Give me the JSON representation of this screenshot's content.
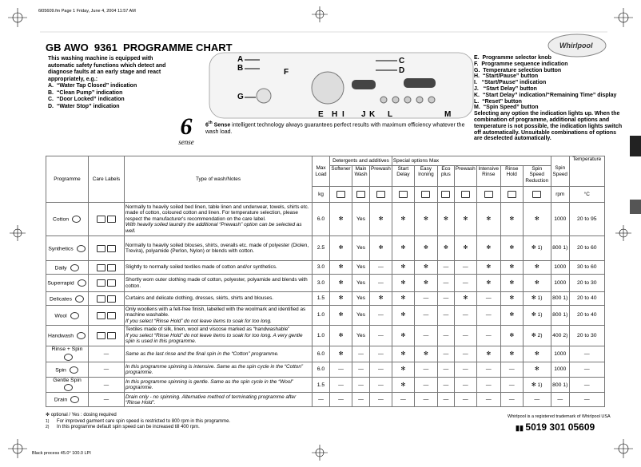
{
  "header": {
    "file_line": "6l05609.fm  Page 1  Friday, June 4, 2004  11:57 AM",
    "title": "GB AWO  9361  PROGRAMME CHART",
    "brand": "Whirlpool"
  },
  "intro": {
    "text": "This washing machine is equipped with automatic safety functions which detect and diagnose faults at an early stage and react appropriately, e.g.:",
    "items": [
      "A.  “Water Tap Closed” indication",
      "B.  “Clean Pump” indication",
      "C.  “Door Locked” indication",
      "D.  “Water Stop” indication"
    ]
  },
  "panel_labels": [
    "A",
    "B",
    "C",
    "D",
    "E",
    "F",
    "G",
    "H",
    "I",
    "J",
    "K",
    "L",
    "M"
  ],
  "legend": {
    "items": [
      "E.  Programme selector knob",
      "F.  Programme sequence indication",
      "G.  Temperature selection button",
      "H.  “Start/Pause” button",
      "I.   “Start/Pause” indication",
      "J.   “Start Delay” button",
      "K.  “Start Delay” indication/“Remaining Time” display",
      "L.  “Reset” button",
      "M.  “Spin Speed” button"
    ],
    "note": "Selecting any option the indication lights up. When the combination of programme, additional options and temperature is not possible, the indication lights switch off automatically. Unsuitable combinations of options are deselected automatically."
  },
  "sixth_sense": {
    "logo_number": "6",
    "logo_word": "sense",
    "lead": "6",
    "lead_sup": "th",
    "lead_word": " Sense",
    "text": " intelligent technology always guarantees perfect results with maximum efficiency whatever the wash load."
  },
  "table": {
    "headers": {
      "programme": "Programme",
      "care": "Care Labels",
      "type": "Type of wash/Notes",
      "max_load": "Max Load",
      "detergents": "Detergents and additives",
      "special": "Special options Max",
      "spin": "Spin Speed",
      "temperature": "Temperature",
      "columns": [
        "Softener",
        "Main Wash",
        "Prewash",
        "Start Delay",
        "Easy Ironing",
        "Eco plus",
        "Prewash",
        "Intensive Rinse",
        "Rinse Hold",
        "Spin Speed Reduction"
      ],
      "unit_load": "kg",
      "unit_spin": "rpm",
      "unit_temp": "°C"
    },
    "rows": [
      {
        "programme": "Cotton",
        "notes": {
          "text": "Normally to heavily soiled bed linen, table linen and underwear, towels, shirts etc. made of cotton, coloured cotton and linen. For temperature selection, please respect the manufacturer's recommendation on the care label.",
          "italic": "With heavily soiled laundry the additional “Prewash” option can be selected as well."
        },
        "cells": [
          "6.0",
          "✻",
          "Yes",
          "✻",
          "✻",
          "✻",
          "✻",
          "✻",
          "✻",
          "✻",
          "✻",
          "1000",
          "20 to 95"
        ]
      },
      {
        "programme": "Synthetics",
        "notes": {
          "text": "Normally to heavily soiled blouses, shirts, overalls etc. made of polyester (Diolen, Trevira), polyamide (Perlon, Nylon) or blends with cotton."
        },
        "cells": [
          "2.5",
          "✻",
          "Yes",
          "✻",
          "✻",
          "✻",
          "✻",
          "✻",
          "✻",
          "✻",
          "✻ 1)",
          "800 1)",
          "20 to 60"
        ]
      },
      {
        "programme": "Daily",
        "notes": {
          "text": "Slightly to normally soiled textiles made of cotton and/or synthetics."
        },
        "cells": [
          "3.0",
          "✻",
          "Yes",
          "—",
          "✻",
          "✻",
          "—",
          "—",
          "✻",
          "✻",
          "✻",
          "1000",
          "30 to 60"
        ]
      },
      {
        "programme": "Superrapid",
        "notes": {
          "text": "Shortly worn outer clothing made of cotton, polyester, polyamide and blends with cotton."
        },
        "cells": [
          "3.0",
          "✻",
          "Yes",
          "—",
          "✻",
          "✻",
          "—",
          "—",
          "✻",
          "✻",
          "✻",
          "1000",
          "20 to 30"
        ]
      },
      {
        "programme": "Delicates",
        "notes": {
          "text": "Curtains and delicate clothing, dresses, skirts, shirts and blouses."
        },
        "cells": [
          "1.5",
          "✻",
          "Yes",
          "✻",
          "✻",
          "—",
          "—",
          "✻",
          "—",
          "✻",
          "✻ 1)",
          "800 1)",
          "20 to 40"
        ]
      },
      {
        "programme": "Wool",
        "notes": {
          "text": "Only woollens with a felt-free finish, labelled with the woolmark and identified as machine washable.",
          "italic": "If you select “Rinse Hold” do not leave items to soak for too long."
        },
        "cells": [
          "1.0",
          "✻",
          "Yes",
          "—",
          "✻",
          "—",
          "—",
          "—",
          "—",
          "✻",
          "✻ 1)",
          "800 1)",
          "20 to 40"
        ]
      },
      {
        "programme": "Handwash",
        "notes": {
          "text": "Textiles made of silk, linen, wool and viscose marked as “handwashable”",
          "italic": "If you select “Rinse Hold” do not leave items to soak for too long. A very gentle spin is used in this programme."
        },
        "cells": [
          "1.0",
          "✻",
          "Yes",
          "—",
          "✻",
          "—",
          "—",
          "—",
          "—",
          "✻",
          "✻ 2)",
          "400 2)",
          "20 to 30"
        ]
      },
      {
        "programme": "Rinse + Spin",
        "care": "—",
        "notes": {
          "italic": "Same as the last rinse and the final spin in the “Cotton” programme."
        },
        "cells": [
          "6.0",
          "✻",
          "—",
          "—",
          "✻",
          "✻",
          "—",
          "—",
          "✻",
          "✻",
          "✻",
          "1000",
          "—"
        ]
      },
      {
        "programme": "Spin",
        "care": "—",
        "notes": {
          "italic": "In this programme spinning is intensive. Same as the spin cycle in the “Cotton” programme."
        },
        "cells": [
          "6.0",
          "—",
          "—",
          "—",
          "✻",
          "—",
          "—",
          "—",
          "—",
          "—",
          "✻",
          "1000",
          "—"
        ]
      },
      {
        "programme": "Gentle Spin",
        "care": "—",
        "notes": {
          "italic": "In this programme spinning is gentle. Same as the spin cycle in the “Wool” programme."
        },
        "cells": [
          "1.5",
          "—",
          "—",
          "—",
          "✻",
          "—",
          "—",
          "—",
          "—",
          "—",
          "✻ 1)",
          "800 1)",
          "—"
        ]
      },
      {
        "programme": "Drain",
        "care": "—",
        "notes": {
          "italic": "Drain only - no spinning. Alternative method of terminating programme after “Rinse Hold”."
        },
        "cells": [
          "—",
          "—",
          "—",
          "—",
          "—",
          "—",
          "—",
          "—",
          "—",
          "—",
          "—",
          "—",
          "—"
        ]
      }
    ]
  },
  "footer": {
    "symbol_note": "✻ optional / Yes : dosing required",
    "footnotes": [
      {
        "mark": "1)",
        "text": "For improved garment care spin speed is restricted to 800 rpm in this programme."
      },
      {
        "mark": "2)",
        "text": "In this programme default spin speed can be increased till 400 rpm."
      }
    ],
    "trademark": "Whirlpool is a registered trademark of Whirlpool USA",
    "code": "5019 301 05609",
    "print_line": "Black process 45.0° 100.0 LPI"
  }
}
